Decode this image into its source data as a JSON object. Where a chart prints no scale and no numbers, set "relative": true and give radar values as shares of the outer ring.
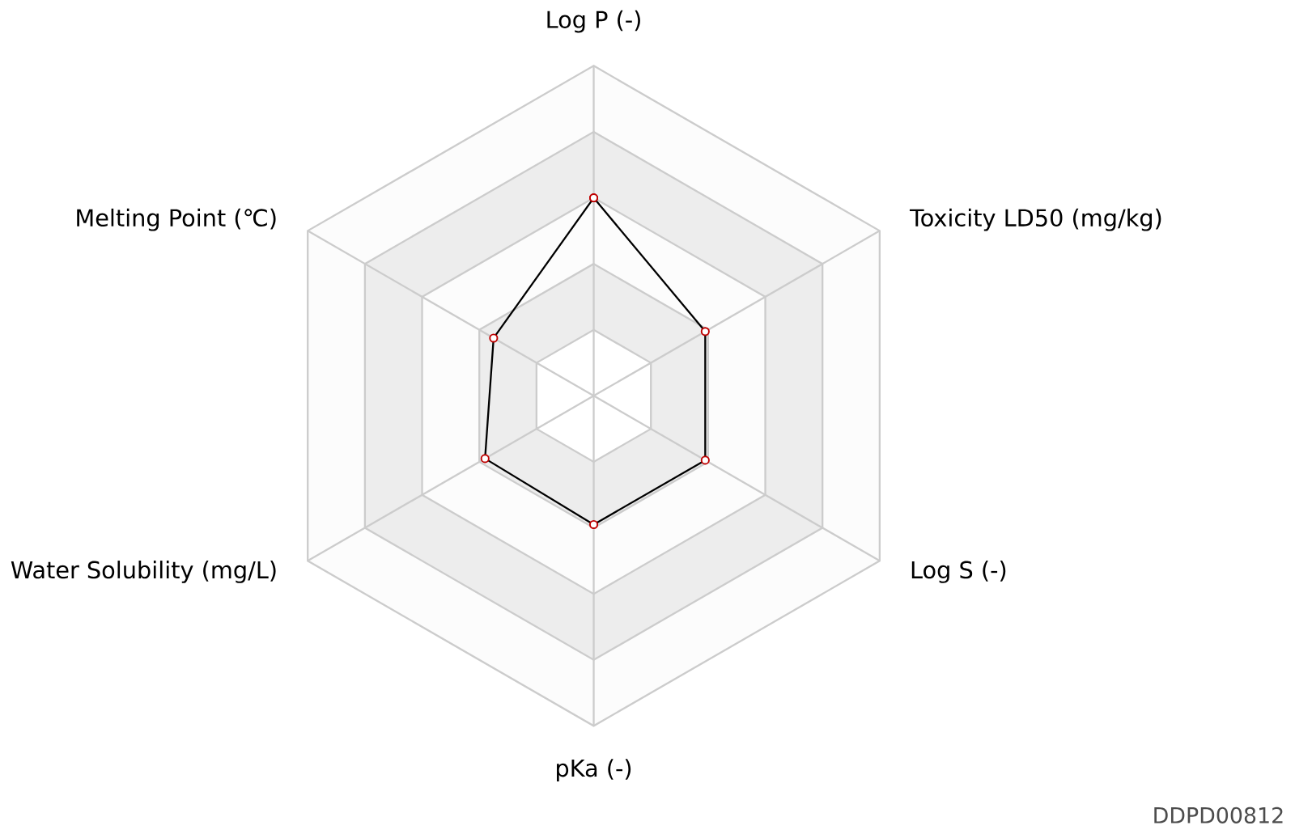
{
  "chart_data": {
    "type": "radar",
    "relative": true,
    "marker": "circle",
    "categories": [
      "Log P (-)",
      "Toxicity LD50 (mg/kg)",
      "Log S (-)",
      "pKa (-)",
      "Water Solubility (mg/L)",
      "Melting Point (℃)"
    ],
    "series": [
      {
        "color": "#000000",
        "values": [
          0.6,
          0.39,
          0.39,
          0.39,
          0.38,
          0.35
        ]
      }
    ],
    "annotations": [
      "DDPD00812"
    ]
  }
}
